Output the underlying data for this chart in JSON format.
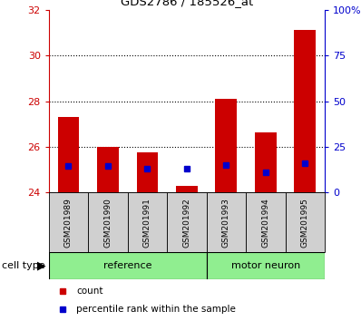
{
  "title": "GDS2786 / 185526_at",
  "samples": [
    "GSM201989",
    "GSM201990",
    "GSM201991",
    "GSM201992",
    "GSM201993",
    "GSM201994",
    "GSM201995"
  ],
  "ref_count": 4,
  "bar_bottom": 24,
  "red_tops": [
    27.3,
    26.0,
    25.75,
    24.3,
    28.1,
    26.65,
    31.1
  ],
  "blue_values_left": [
    25.15,
    25.15,
    25.05,
    25.05,
    25.2,
    24.9,
    25.3
  ],
  "ylim_left": [
    24,
    32
  ],
  "yticks_left": [
    24,
    26,
    28,
    30,
    32
  ],
  "ylim_right": [
    0,
    100
  ],
  "yticks_right": [
    0,
    25,
    50,
    75,
    100
  ],
  "yticklabels_right": [
    "0",
    "25",
    "50",
    "75",
    "100%"
  ],
  "left_axis_color": "#cc0000",
  "right_axis_color": "#0000cc",
  "bar_color": "#cc0000",
  "blue_color": "#0000cc",
  "legend_items": [
    "count",
    "percentile rank within the sample"
  ],
  "cell_type_label": "cell type",
  "gridlines": [
    26,
    28,
    30
  ],
  "sample_box_color": "#d0d0d0",
  "ref_group_color": "#90EE90",
  "mot_group_color": "#90EE90",
  "ref_label": "reference",
  "mot_label": "motor neuron"
}
